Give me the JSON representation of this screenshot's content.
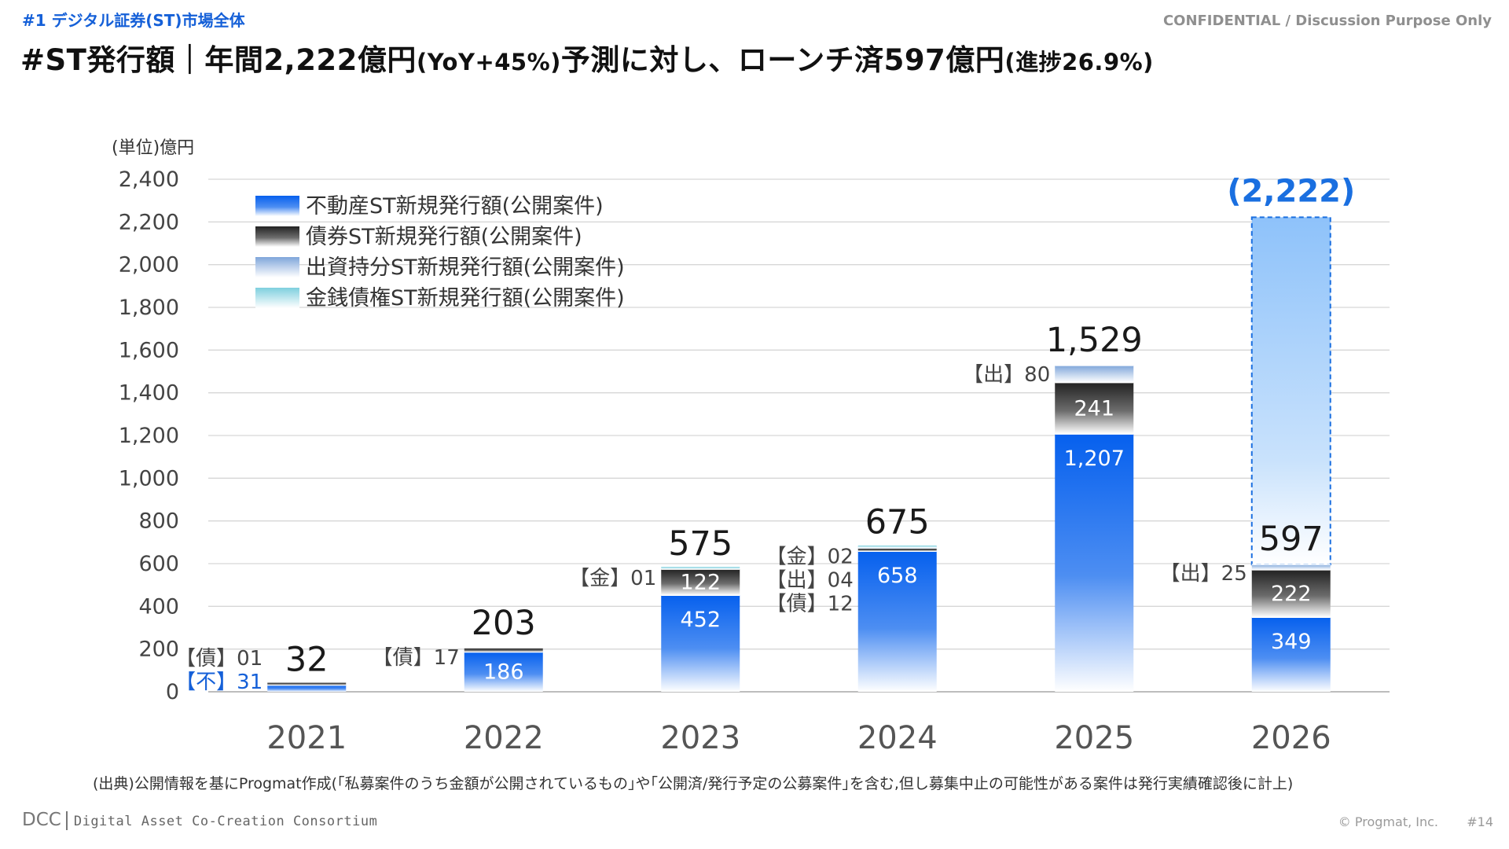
{
  "page": {
    "section_tag": "#1  デジタル証券(ST)市場全体",
    "confidential": "CONFIDENTIAL / Discussion Purpose Only",
    "headline_main": "#ST発行額｜年間2,222億円",
    "headline_yoy": "(YoY+45%)",
    "headline_mid": "予測に対し、ローンチ済597億円",
    "headline_progress": "(進捗26.9%)",
    "source": "(出典)公開情報を基にProgmat作成(｢私募案件のうち金額が公開されているもの｣や｢公開済/発行予定の公募案件｣を含む,但し募集中止の可能性がある案件は発行実績確認後に計上)",
    "footer_logo": "DCC",
    "footer_logo_sub": "Digital Asset Co-Creation Consortium",
    "copyright": "© Progmat, Inc.",
    "page_number": "#14"
  },
  "chart_data": {
    "type": "bar",
    "stacked": true,
    "unit_label": "(単位)億円",
    "ylim": [
      0,
      2400
    ],
    "yticks": [
      "0",
      "200",
      "400",
      "600",
      "800",
      "1,000",
      "1,200",
      "1,400",
      "1,600",
      "1,800",
      "2,000",
      "2,200",
      "2,400"
    ],
    "grid": true,
    "legend_position": "top-left",
    "categories": [
      "2021",
      "2022",
      "2023",
      "2024",
      "2025",
      "2026"
    ],
    "series": [
      {
        "name": "不動産ST新規発行額(公開案件)",
        "key": "re",
        "color": "#0a64f0",
        "values": [
          31,
          186,
          452,
          658,
          1207,
          349
        ]
      },
      {
        "name": "債券ST新規発行額(公開案件)",
        "key": "bond",
        "color": "#2b2b2b",
        "values": [
          1,
          17,
          122,
          12,
          241,
          222
        ]
      },
      {
        "name": "出資持分ST新規発行額(公開案件)",
        "key": "equity",
        "color": "#8eb0de",
        "values": [
          0,
          0,
          0,
          4,
          80,
          25
        ]
      },
      {
        "name": "金銭債権ST新規発行額(公開案件)",
        "key": "mc",
        "color": "#8fd4e0",
        "values": [
          0,
          0,
          1,
          2,
          0,
          0
        ]
      }
    ],
    "totals": [
      "32",
      "203",
      "575",
      "675",
      "1,529",
      "597"
    ],
    "inner_labels": [
      "",
      "186",
      "452",
      "658",
      "1,207",
      "349"
    ],
    "bond_inner_labels": [
      "",
      "",
      "122",
      "",
      "241",
      "222"
    ],
    "side_labels": [
      [
        "【債】01",
        "【不】31"
      ],
      [
        "【債】17"
      ],
      [
        "【金】01"
      ],
      [
        "【金】02",
        "【出】04",
        "【債】12"
      ],
      [
        "【出】80"
      ],
      [
        "【出】25"
      ]
    ],
    "forecast": {
      "category": "2026",
      "value": 2222,
      "label": "(2,222)",
      "color": "#1a6fe0"
    }
  }
}
